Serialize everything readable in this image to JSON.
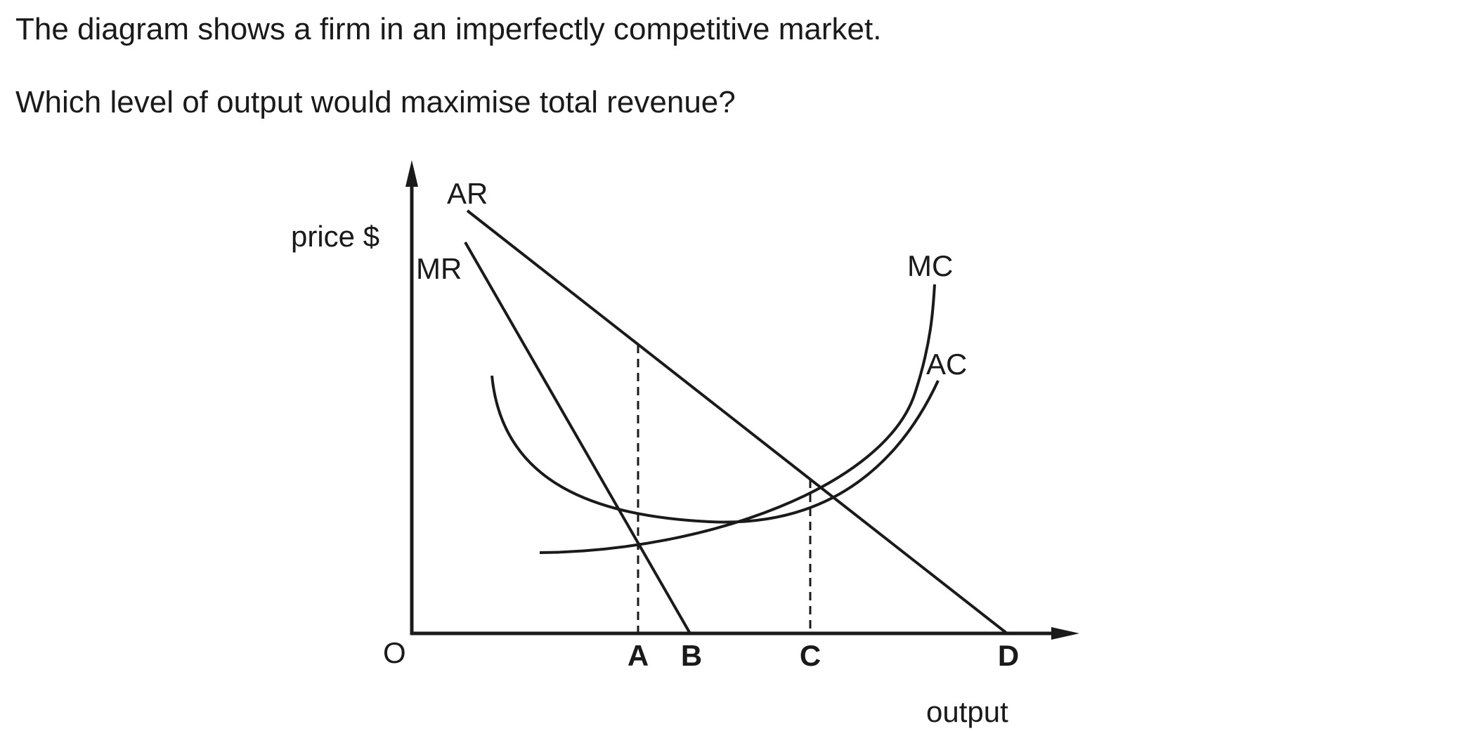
{
  "question": {
    "intro": "The diagram shows a firm in an imperfectly competitive market.",
    "prompt": "Which level of output would maximise total revenue?"
  },
  "diagram": {
    "y_axis_label": "price $",
    "x_axis_label": "output",
    "origin_label": "O",
    "curves": {
      "ar": "AR",
      "mr": "MR",
      "mc": "MC",
      "ac": "AC"
    },
    "output_points": {
      "a": "A",
      "b": "B",
      "c": "C",
      "d": "D"
    },
    "line_color": "#1a1a1a"
  }
}
